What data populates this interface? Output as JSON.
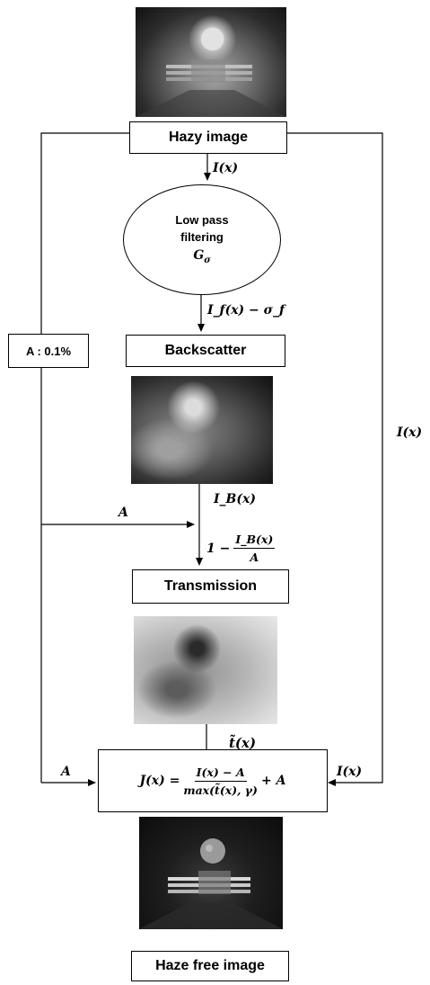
{
  "nodes": {
    "hazy_image": "Hazy image",
    "low_pass": {
      "line1": "Low pass",
      "line2": "filtering",
      "symbol": "G",
      "symbol_sub": "σ"
    },
    "airlight": "A : 0.1%",
    "backscatter": "Backscatter",
    "transmission": "Transmission",
    "haze_free": "Haze free image",
    "recovery": {
      "lhs": "J(x) =",
      "numerator": "I(x) − A",
      "denominator": "max(t̃(x), γ)",
      "tail": "+ A"
    }
  },
  "edge_labels": {
    "hazy_to_filter": "I(x)",
    "filter_to_backscatter": "I_f(x) − σ_f",
    "backscatter_out": "I_B(x)",
    "airlight_in": "A",
    "transmission_expr": {
      "lead": "1 −",
      "numerator": "I_B(x)",
      "denominator": "A"
    },
    "transmission_out": "t̃(x)",
    "airlight_to_recovery": "A",
    "input_to_recovery": "I(x)",
    "input_bypass": "I(x)"
  }
}
